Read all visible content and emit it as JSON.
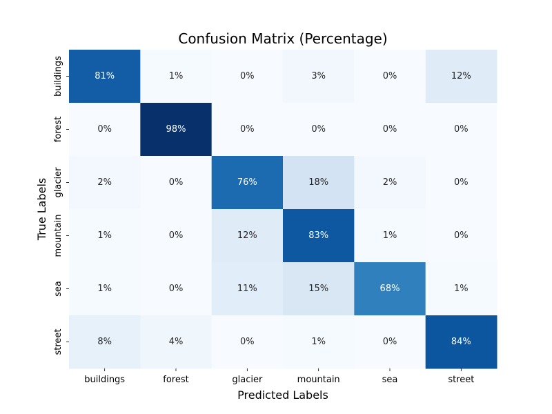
{
  "chart_data": {
    "type": "heatmap",
    "title": "Confusion Matrix (Percentage)",
    "xlabel": "Predicted Labels",
    "ylabel": "True Labels",
    "x_categories": [
      "buildings",
      "forest",
      "glacier",
      "mountain",
      "sea",
      "street"
    ],
    "y_categories": [
      "buildings",
      "forest",
      "glacier",
      "mountain",
      "sea",
      "street"
    ],
    "values": [
      [
        81,
        1,
        0,
        3,
        0,
        12
      ],
      [
        0,
        98,
        0,
        0,
        0,
        0
      ],
      [
        2,
        0,
        76,
        18,
        2,
        0
      ],
      [
        1,
        0,
        12,
        83,
        1,
        0
      ],
      [
        1,
        0,
        11,
        15,
        68,
        1
      ],
      [
        8,
        4,
        0,
        1,
        0,
        84
      ]
    ],
    "value_suffix": "%",
    "colormap": "Blues",
    "grid": false,
    "legend": "none"
  }
}
